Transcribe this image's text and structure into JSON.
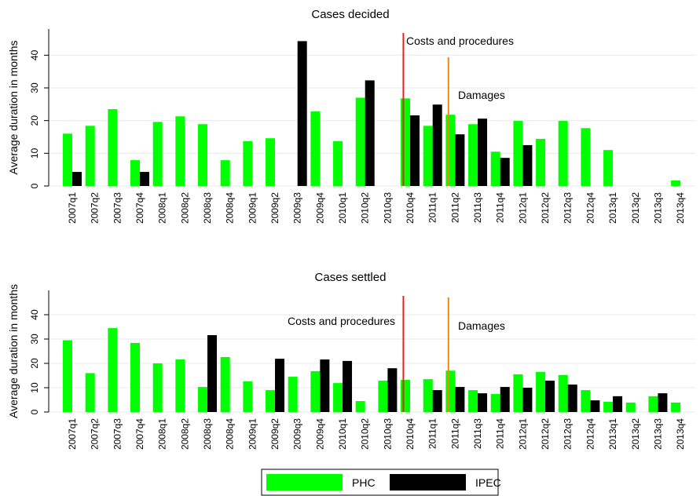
{
  "chart_data": [
    {
      "type": "bar",
      "title": "Cases decided",
      "ylabel": "Average duration in months",
      "categories": [
        "2007q1",
        "2007q2",
        "2007q3",
        "2007q4",
        "2008q1",
        "2008q2",
        "2008q3",
        "2008q4",
        "2009q1",
        "2009q2",
        "2009q3",
        "2009q4",
        "2010q1",
        "2010q2",
        "2010q3",
        "2010q4",
        "2011q1",
        "2011q2",
        "2011q3",
        "2011q4",
        "2012q1",
        "2012q2",
        "2012q3",
        "2012q4",
        "2013q1",
        "2013q2",
        "2013q3",
        "2013q4"
      ],
      "series": [
        {
          "name": "PHC",
          "color": "#00ff00",
          "values": [
            16,
            18.4,
            23.5,
            7.9,
            19.6,
            21.3,
            18.9,
            7.9,
            13.7,
            14.6,
            null,
            22.8,
            13.7,
            27,
            null,
            26.8,
            18.4,
            21.8,
            18.9,
            10.5,
            19.9,
            14.4,
            19.9,
            17.7,
            11,
            null,
            null,
            1.7
          ]
        },
        {
          "name": "IPEC",
          "color": "#000000",
          "values": [
            4.3,
            null,
            null,
            4.3,
            null,
            null,
            null,
            null,
            null,
            null,
            44.3,
            null,
            null,
            32.3,
            null,
            21.6,
            24.9,
            15.8,
            20.6,
            8.6,
            12.5,
            null,
            null,
            null,
            null,
            null,
            null,
            null
          ]
        }
      ],
      "ylim": [
        0,
        48
      ],
      "yticks": [
        0,
        10,
        20,
        30,
        40
      ],
      "grid": true,
      "annotations": [
        {
          "text": "Costs and procedures",
          "color": "#e8201c"
        },
        {
          "text": "Damages",
          "color": "#f5860a"
        }
      ]
    },
    {
      "type": "bar",
      "title": "Cases settled",
      "ylabel": "Average duration in months",
      "categories": [
        "2007q1",
        "2007q2",
        "2007q3",
        "2007q4",
        "2008q1",
        "2008q2",
        "2008q3",
        "2008q4",
        "2009q1",
        "2009q2",
        "2009q3",
        "2009q4",
        "2010q1",
        "2010q2",
        "2010q3",
        "2010q4",
        "2011q1",
        "2011q2",
        "2011q3",
        "2011q4",
        "2012q1",
        "2012q2",
        "2012q3",
        "2012q4",
        "2013q1",
        "2013q2",
        "2013q3",
        "2013q4"
      ],
      "series": [
        {
          "name": "PHC",
          "color": "#00ff00",
          "values": [
            29.5,
            16,
            34.5,
            28.4,
            20,
            21.6,
            10.3,
            22.6,
            12.6,
            9,
            14.5,
            16.8,
            11.9,
            4.5,
            12.9,
            13.2,
            13.5,
            17,
            9,
            7.4,
            15.5,
            16.5,
            15.2,
            9,
            4.2,
            3.9,
            6.5,
            3.9
          ]
        },
        {
          "name": "IPEC",
          "color": "#000000",
          "values": [
            null,
            null,
            null,
            null,
            null,
            null,
            31.6,
            null,
            null,
            21.9,
            null,
            21.6,
            21,
            null,
            18,
            null,
            9,
            10.3,
            7.7,
            10.3,
            10,
            12.9,
            11.3,
            4.8,
            6.5,
            null,
            7.7,
            null
          ]
        }
      ],
      "ylim": [
        0,
        50
      ],
      "yticks": [
        0,
        10,
        20,
        30,
        40
      ],
      "grid": true,
      "annotations": [
        {
          "text": "Costs and procedures",
          "color": "#e8201c"
        },
        {
          "text": "Damages",
          "color": "#f5860a"
        }
      ]
    }
  ]
}
